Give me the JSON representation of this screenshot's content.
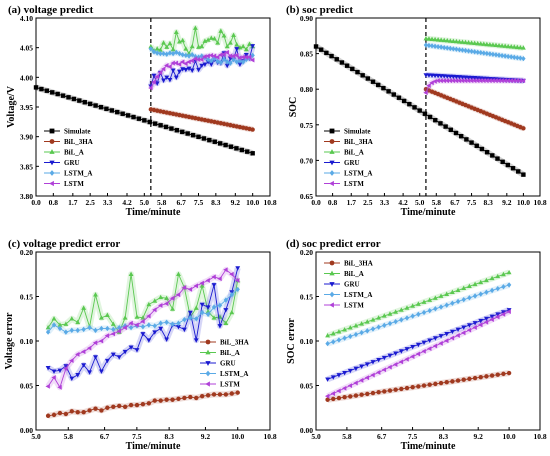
{
  "chart_data": [
    {
      "type": "line",
      "panel": "a",
      "title": "(a) voltage predict",
      "xlabel": "Time/minute",
      "ylabel": "Voltage/V",
      "xlim": [
        0.0,
        10.8
      ],
      "ylim": [
        3.8,
        4.1
      ],
      "xticks": [
        "0.0",
        "0.8",
        "1.7",
        "2.5",
        "3.3",
        "4.2",
        "5.0",
        "5.8",
        "6.7",
        "7.5",
        "8.3",
        "9.2",
        "10.0",
        "10.8"
      ],
      "yticks": [
        "3.80",
        "3.85",
        "3.90",
        "3.95",
        "4.00",
        "4.05",
        "4.10"
      ],
      "split_line_x": 5.3,
      "legend_position": "bottom-left",
      "series": [
        {
          "name": "Simulate",
          "color": "#000000",
          "marker": "square",
          "x_start": 0.0,
          "x_end": 10.0,
          "points": 41,
          "values": [
            3.983,
            3.872
          ]
        },
        {
          "name": "BiL_3HA",
          "color": "#a0391f",
          "marker": "circle",
          "x_start": 5.3,
          "x_end": 10.0,
          "points": 33,
          "values": [
            3.946,
            3.912
          ]
        },
        {
          "name": "BiL_A",
          "color": "#5ac850",
          "marker": "triangle-up",
          "x_start": 5.3,
          "x_end": 10.0,
          "points": 33,
          "values": [
            4.052,
            4.045,
            4.048,
            4.046,
            4.058,
            4.051,
            4.057,
            4.047,
            4.076,
            4.06,
            4.062,
            4.048,
            4.04,
            4.052,
            4.083,
            4.051,
            4.052,
            4.061,
            4.063,
            4.066,
            4.065,
            4.058,
            4.078,
            4.07,
            4.052,
            4.058,
            4.071,
            4.055,
            4.05,
            4.052,
            4.047,
            4.056,
            4.052
          ]
        },
        {
          "name": "GRU",
          "color": "#1a1ad0",
          "marker": "triangle-down",
          "x_start": 5.3,
          "x_end": 10.0,
          "points": 33,
          "values": [
            3.985,
            4.003,
            3.99,
            4.008,
            3.995,
            4.0,
            3.996,
            4.012,
            4.0,
            4.01,
            4.014,
            4.013,
            4.015,
            4.012,
            4.028,
            4.013,
            4.02,
            4.022,
            4.026,
            4.022,
            4.03,
            4.025,
            4.024,
            4.041,
            4.02,
            4.032,
            4.03,
            4.048,
            4.022,
            4.028,
            4.038,
            4.032,
            4.053
          ]
        },
        {
          "name": "LSTM_A",
          "color": "#5aaae6",
          "marker": "diamond",
          "x_start": 5.3,
          "x_end": 10.0,
          "points": 33,
          "values": [
            4.048,
            4.043,
            4.041,
            4.04,
            4.04,
            4.039,
            4.041,
            4.04,
            4.042,
            4.04,
            4.038,
            4.037,
            4.036,
            4.038,
            4.035,
            4.034,
            4.036,
            4.033,
            4.03,
            4.028,
            4.032,
            4.027,
            4.025,
            4.03,
            4.026,
            4.024,
            4.03,
            4.026,
            4.028,
            4.026,
            4.03,
            4.033,
            4.037
          ]
        },
        {
          "name": "LSTM",
          "color": "#b040d8",
          "marker": "triangle-left",
          "x_start": 5.3,
          "x_end": 10.0,
          "points": 33,
          "values": [
            3.982,
            3.992,
            4.001,
            4.008,
            4.014,
            4.02,
            4.018,
            4.024,
            4.024,
            4.022,
            4.026,
            4.023,
            4.026,
            4.028,
            4.031,
            4.03,
            4.03,
            4.035,
            4.036,
            4.037,
            4.036,
            4.034,
            4.038,
            4.039,
            4.042,
            4.036,
            4.036,
            4.037,
            4.033,
            4.034,
            4.034,
            4.034,
            4.029
          ]
        }
      ]
    },
    {
      "type": "line",
      "panel": "b",
      "title": "(b) soc predict",
      "xlabel": "Time/minute",
      "ylabel": "SOC",
      "xlim": [
        0.0,
        10.8
      ],
      "ylim": [
        0.65,
        0.9
      ],
      "xticks": [
        "0.0",
        "0.8",
        "1.7",
        "2.5",
        "3.3",
        "4.2",
        "5.0",
        "5.8",
        "6.7",
        "7.5",
        "8.3",
        "9.2",
        "10.0",
        "10.8"
      ],
      "yticks": [
        "0.65",
        "0.70",
        "0.75",
        "0.80",
        "0.85",
        "0.90"
      ],
      "split_line_x": 5.3,
      "legend_position": "bottom-left",
      "series": [
        {
          "name": "Simulate",
          "color": "#000000",
          "marker": "square",
          "x_start": 0.0,
          "x_end": 10.0,
          "points": 41,
          "values": [
            0.86,
            0.68
          ]
        },
        {
          "name": "BiL_3HA",
          "color": "#a0391f",
          "marker": "circle",
          "x_start": 5.3,
          "x_end": 10.0,
          "points": 33,
          "values": [
            0.8,
            0.745
          ]
        },
        {
          "name": "BiL_A",
          "color": "#5ac850",
          "marker": "triangle-up",
          "x_start": 5.3,
          "x_end": 10.0,
          "points": 33,
          "values": [
            0.871,
            0.858
          ]
        },
        {
          "name": "GRU",
          "color": "#1a1ad0",
          "marker": "triangle-down",
          "x_start": 5.3,
          "x_end": 10.0,
          "points": 33,
          "values": [
            0.82,
            0.812
          ]
        },
        {
          "name": "LSTM_A",
          "color": "#5aaae6",
          "marker": "diamond",
          "x_start": 5.3,
          "x_end": 10.0,
          "points": 33,
          "values": [
            0.862,
            0.843
          ]
        },
        {
          "name": "LSTM",
          "color": "#b040d8",
          "marker": "triangle-left",
          "x_start": 5.3,
          "x_end": 10.0,
          "points": 33,
          "values": [
            0.795,
            0.805,
            0.809,
            0.811,
            0.812,
            0.812,
            0.812,
            0.812,
            0.812,
            0.812,
            0.812,
            0.812,
            0.812,
            0.812,
            0.812,
            0.812,
            0.812,
            0.812,
            0.812,
            0.812,
            0.812,
            0.812,
            0.812,
            0.812,
            0.812,
            0.812,
            0.812,
            0.812,
            0.812,
            0.812,
            0.812,
            0.812,
            0.812
          ]
        }
      ]
    },
    {
      "type": "line",
      "panel": "c",
      "title": "(c) voltage predict error",
      "xlabel": "Time/minute",
      "ylabel": "Voltage error",
      "xlim": [
        5.0,
        10.8
      ],
      "ylim": [
        0.0,
        0.2
      ],
      "xticks": [
        "5.0",
        "5.8",
        "6.7",
        "7.5",
        "8.3",
        "9.2",
        "10.0",
        "10.8"
      ],
      "yticks": [
        "0.00",
        "0.05",
        "0.10",
        "0.15",
        "0.20"
      ],
      "legend_position": "right",
      "series": [
        {
          "name": "BiL_3HA",
          "color": "#a0391f",
          "marker": "circle",
          "x_start": 5.3,
          "x_end": 10.0,
          "points": 33,
          "values": [
            0.016,
            0.017,
            0.019,
            0.018,
            0.021,
            0.02,
            0.02,
            0.022,
            0.024,
            0.022,
            0.025,
            0.026,
            0.027,
            0.026,
            0.028,
            0.028,
            0.029,
            0.03,
            0.033,
            0.033,
            0.034,
            0.034,
            0.035,
            0.036,
            0.037,
            0.036,
            0.038,
            0.039,
            0.04,
            0.04,
            0.04,
            0.041,
            0.042
          ]
        },
        {
          "name": "BiL_A",
          "color": "#5ac850",
          "marker": "triangle-up",
          "x_start": 5.3,
          "x_end": 10.0,
          "points": 33,
          "values": [
            0.115,
            0.125,
            0.118,
            0.119,
            0.125,
            0.121,
            0.137,
            0.116,
            0.152,
            0.126,
            0.129,
            0.119,
            0.11,
            0.126,
            0.175,
            0.127,
            0.126,
            0.141,
            0.145,
            0.149,
            0.148,
            0.136,
            0.175,
            0.16,
            0.127,
            0.137,
            0.162,
            0.133,
            0.126,
            0.127,
            0.12,
            0.132,
            0.168
          ]
        },
        {
          "name": "GRU",
          "color": "#1a1ad0",
          "marker": "triangle-down",
          "x_start": 5.3,
          "x_end": 10.0,
          "points": 33,
          "values": [
            0.07,
            0.066,
            0.067,
            0.072,
            0.058,
            0.062,
            0.073,
            0.065,
            0.082,
            0.066,
            0.078,
            0.085,
            0.082,
            0.088,
            0.093,
            0.09,
            0.108,
            0.101,
            0.11,
            0.114,
            0.102,
            0.118,
            0.116,
            0.113,
            0.132,
            0.101,
            0.141,
            0.138,
            0.163,
            0.117,
            0.135,
            0.155,
            0.182
          ]
        },
        {
          "name": "LSTM_A",
          "color": "#5aaae6",
          "marker": "diamond",
          "x_start": 5.3,
          "x_end": 10.0,
          "points": 33,
          "values": [
            0.11,
            0.118,
            0.114,
            0.11,
            0.112,
            0.112,
            0.113,
            0.115,
            0.112,
            0.114,
            0.114,
            0.113,
            0.115,
            0.117,
            0.115,
            0.117,
            0.116,
            0.118,
            0.117,
            0.12,
            0.121,
            0.119,
            0.12,
            0.124,
            0.126,
            0.125,
            0.132,
            0.13,
            0.138,
            0.14,
            0.146,
            0.152,
            0.158
          ]
        },
        {
          "name": "LSTM",
          "color": "#b040d8",
          "marker": "triangle-left",
          "x_start": 5.3,
          "x_end": 10.0,
          "points": 33,
          "values": [
            0.049,
            0.059,
            0.048,
            0.069,
            0.078,
            0.085,
            0.088,
            0.092,
            0.098,
            0.1,
            0.106,
            0.108,
            0.111,
            0.115,
            0.12,
            0.118,
            0.122,
            0.128,
            0.135,
            0.14,
            0.142,
            0.148,
            0.152,
            0.16,
            0.158,
            0.162,
            0.165,
            0.168,
            0.172,
            0.17,
            0.18,
            0.175,
            0.168
          ]
        }
      ]
    },
    {
      "type": "line",
      "panel": "d",
      "title": "(d) soc predict error",
      "xlabel": "Time/minute",
      "ylabel": "SOC error",
      "xlim": [
        5.0,
        10.8
      ],
      "ylim": [
        0.0,
        0.2
      ],
      "xticks": [
        "5.0",
        "5.8",
        "6.7",
        "7.5",
        "8.3",
        "9.2",
        "10.0",
        "10.8"
      ],
      "yticks": [
        "0.00",
        "0.05",
        "0.10",
        "0.15",
        "0.20"
      ],
      "legend_position": "top-left",
      "series": [
        {
          "name": "BiL_3HA",
          "color": "#a0391f",
          "marker": "circle",
          "x_start": 5.3,
          "x_end": 10.0,
          "points": 33,
          "values": [
            0.034,
            0.064
          ]
        },
        {
          "name": "BiL_A",
          "color": "#5ac850",
          "marker": "triangle-up",
          "x_start": 5.3,
          "x_end": 10.0,
          "points": 33,
          "values": [
            0.106,
            0.177
          ]
        },
        {
          "name": "GRU",
          "color": "#1a1ad0",
          "marker": "triangle-down",
          "x_start": 5.3,
          "x_end": 10.0,
          "points": 33,
          "values": [
            0.057,
            0.135
          ]
        },
        {
          "name": "LSTM_A",
          "color": "#5aaae6",
          "marker": "diamond",
          "x_start": 5.3,
          "x_end": 10.0,
          "points": 33,
          "values": [
            0.097,
            0.163
          ]
        },
        {
          "name": "LSTM",
          "color": "#b040d8",
          "marker": "triangle-left",
          "x_start": 5.3,
          "x_end": 10.0,
          "points": 33,
          "values": [
            0.038,
            0.133
          ]
        }
      ]
    }
  ]
}
